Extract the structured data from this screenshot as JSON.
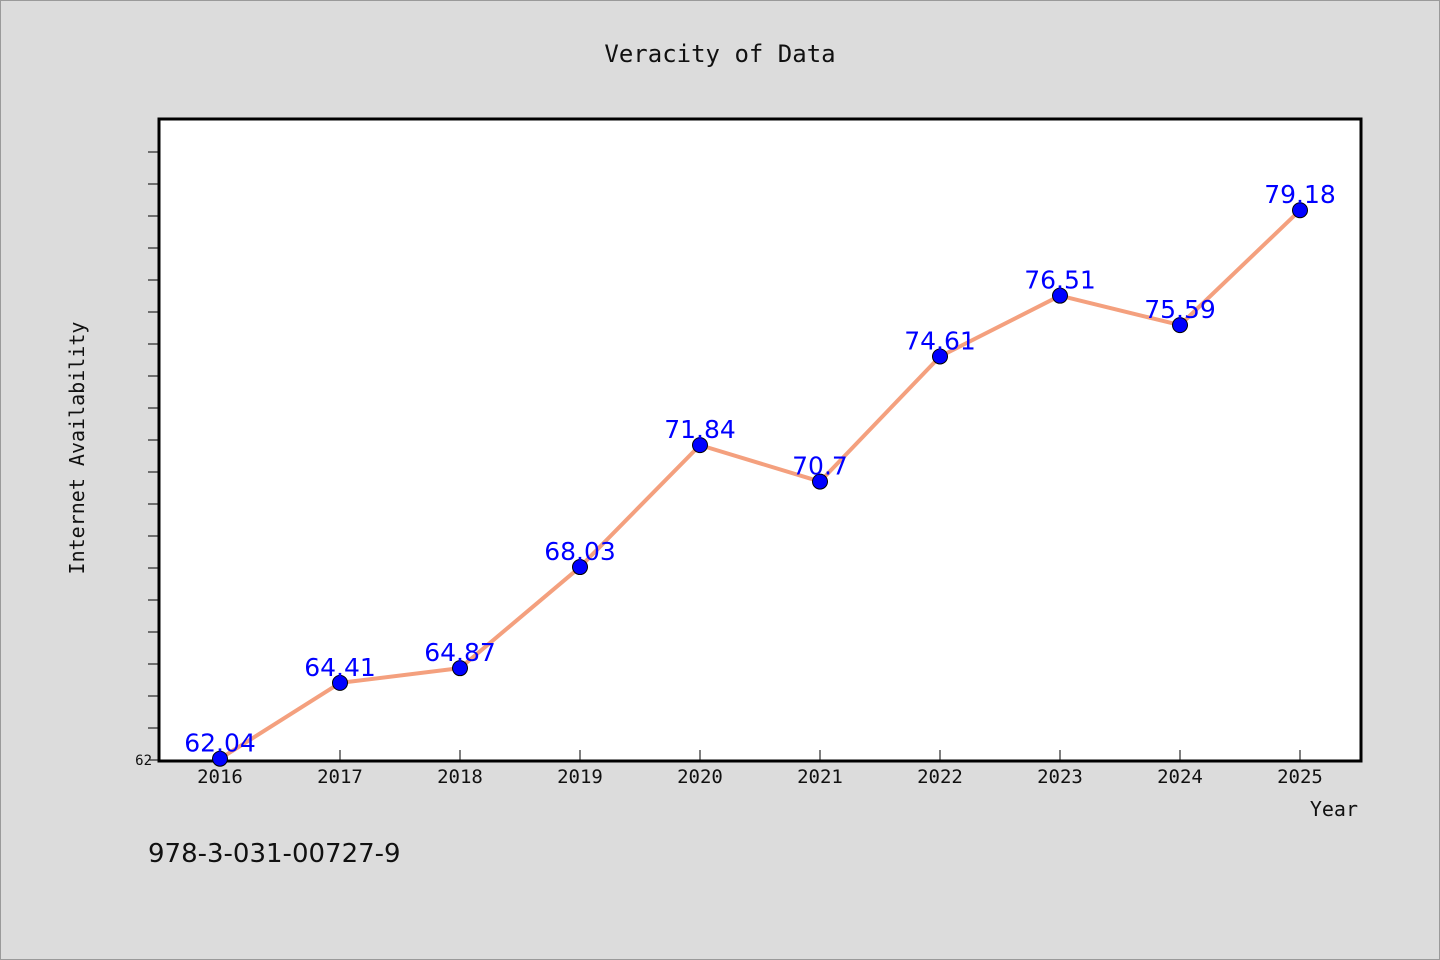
{
  "chart_data": {
    "type": "line",
    "title": "Veracity of Data",
    "xlabel": "Year",
    "ylabel": "Internet Availability",
    "categories": [
      "2016",
      "2017",
      "2018",
      "2019",
      "2020",
      "2021",
      "2022",
      "2023",
      "2024",
      "2025"
    ],
    "values": [
      62.04,
      64.41,
      64.87,
      68.03,
      71.84,
      70.7,
      74.61,
      76.51,
      75.59,
      79.18
    ],
    "data_labels": [
      "62.04",
      "64.41",
      "64.87",
      "68.03",
      "71.84",
      "70.7",
      "74.61",
      "76.51",
      "75.59",
      "79.18"
    ],
    "ylim": [
      62,
      82
    ],
    "yticks_labeled": [
      "62"
    ],
    "grid": false,
    "line_color": "#f4a07e",
    "marker_color": "#0000ff",
    "label_color": "#0000ff",
    "plot_background": "#ffffff",
    "page_background": "#dcdcdc"
  },
  "footer": {
    "isbn": "978-3-031-00727-9"
  }
}
